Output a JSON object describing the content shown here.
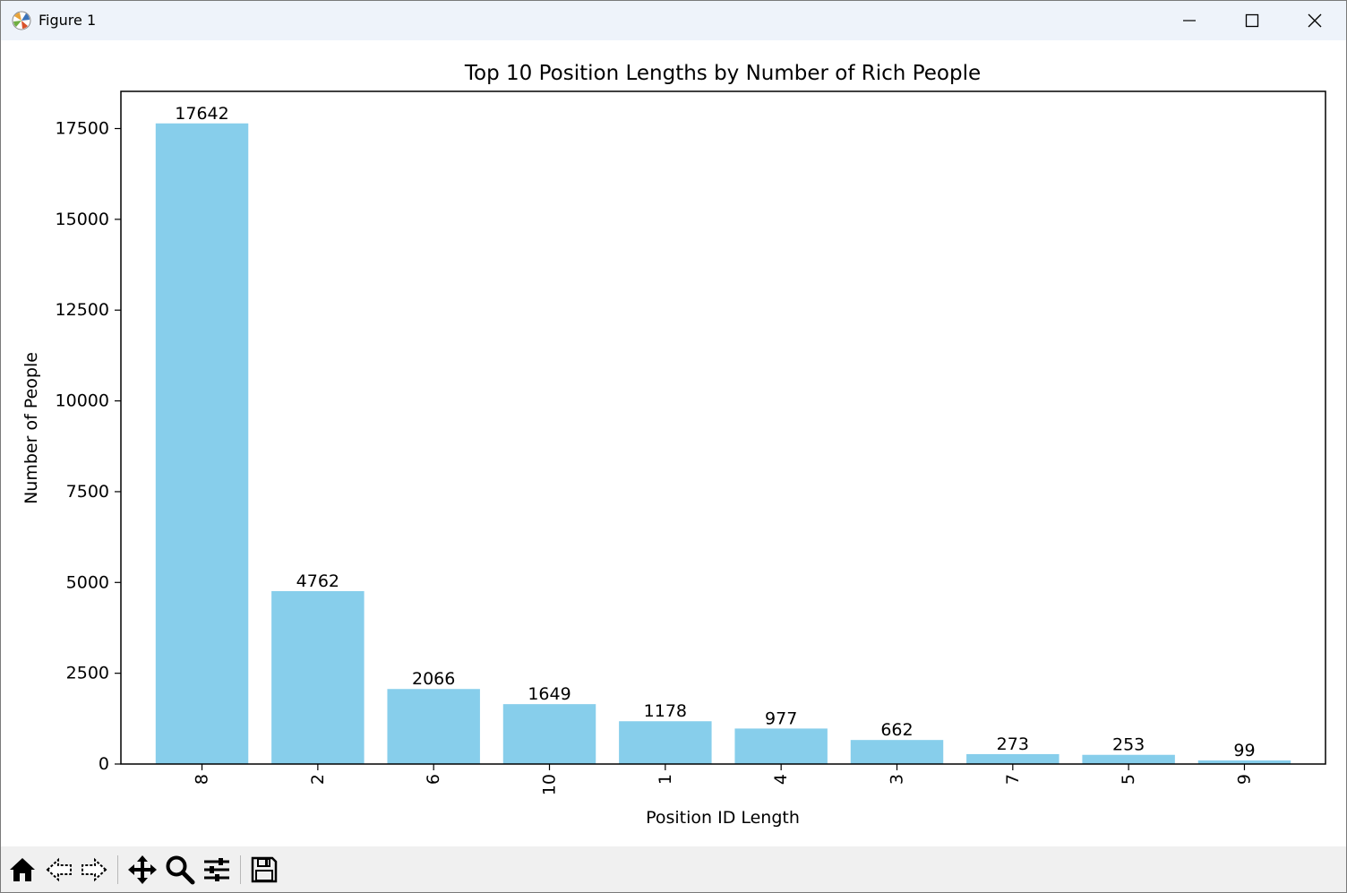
{
  "window": {
    "title": "Figure 1",
    "app_icon": "matplotlib-icon",
    "controls": [
      "minimize-icon",
      "maximize-icon",
      "close-icon"
    ]
  },
  "toolbar": {
    "tools": [
      "home-icon",
      "back-arrow-icon",
      "forward-arrow-icon",
      "pan-move-icon",
      "zoom-magnifier-icon",
      "configure-subplots-icon",
      "save-floppy-icon"
    ]
  },
  "chart_data": {
    "type": "bar",
    "title": "Top 10 Position Lengths by Number of Rich People",
    "xlabel": "Position ID Length",
    "ylabel": "Number of People",
    "categories": [
      "8",
      "2",
      "6",
      "10",
      "1",
      "4",
      "3",
      "7",
      "5",
      "9"
    ],
    "values": [
      17642,
      4762,
      2066,
      1649,
      1178,
      977,
      662,
      273,
      253,
      99
    ],
    "data_labels": [
      "17642",
      "4762",
      "2066",
      "1649",
      "1178",
      "977",
      "662",
      "273",
      "253",
      "99"
    ],
    "yticks": [
      0,
      2500,
      5000,
      7500,
      10000,
      12500,
      15000,
      17500
    ],
    "ytick_labels": [
      "0",
      "2500",
      "5000",
      "7500",
      "10000",
      "12500",
      "15000",
      "17500"
    ],
    "ylim": [
      0,
      18524
    ],
    "xtick_rotation": 90,
    "bar_color": "#87ceeb",
    "grid": false,
    "legend": "none"
  }
}
